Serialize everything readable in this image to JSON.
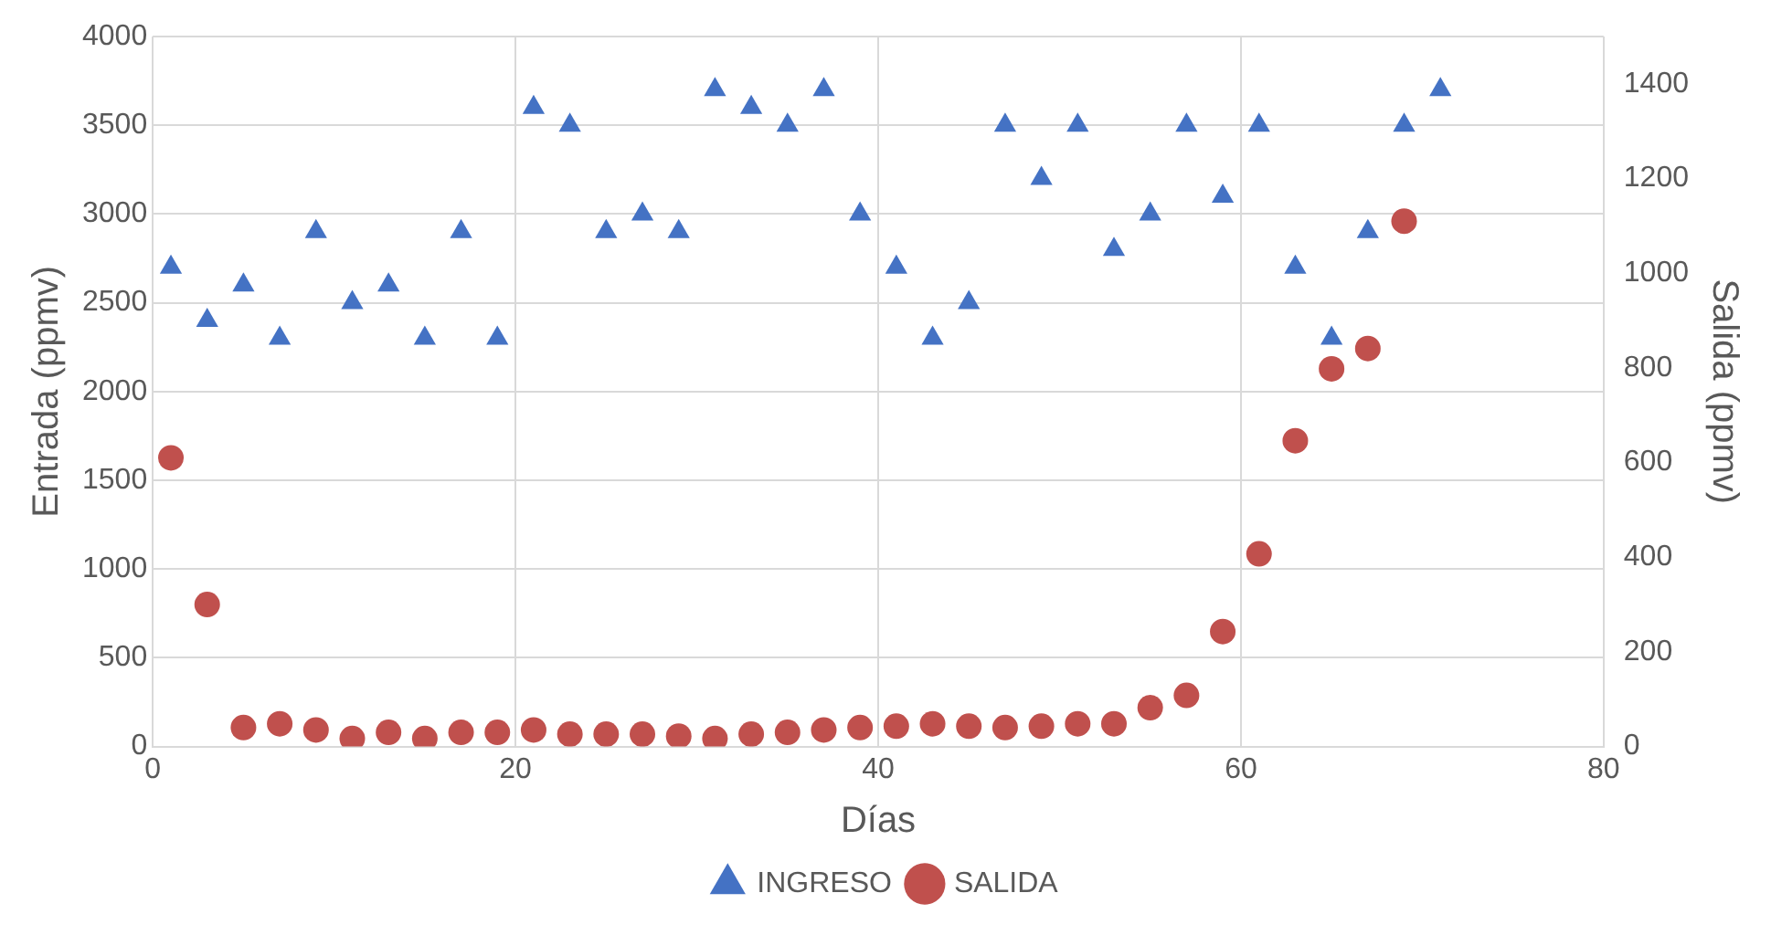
{
  "chart_data": {
    "type": "scatter",
    "xlabel": "Días",
    "ylabel": "Entrada (ppmv)",
    "y2label": "Salida (ppmv)",
    "xlim": [
      0,
      80
    ],
    "xticks": [
      0,
      20,
      40,
      60,
      80
    ],
    "ylim": [
      0,
      4000
    ],
    "yticks": [
      0,
      500,
      1000,
      1500,
      2000,
      2500,
      3000,
      3500,
      4000
    ],
    "y2lim": [
      0,
      1500
    ],
    "y2ticks": [
      0,
      200,
      400,
      600,
      800,
      1000,
      1200,
      1400
    ],
    "grid": true,
    "legend": "bottom",
    "series": [
      {
        "name": "INGRESO",
        "color": "#4472c4",
        "marker": "triangle",
        "x": [
          1,
          3,
          5,
          7,
          9,
          11,
          13,
          15,
          17,
          19,
          21,
          23,
          25,
          27,
          29,
          31,
          33,
          35,
          37,
          39,
          41,
          43,
          45,
          47,
          49,
          51,
          53,
          55,
          57,
          59,
          61,
          63,
          65,
          67,
          69,
          71
        ],
        "values": [
          2700,
          2400,
          2600,
          2300,
          2900,
          2500,
          2600,
          2300,
          2900,
          2300,
          3600,
          3500,
          2900,
          3000,
          2900,
          3700,
          3600,
          3500,
          3700,
          3000,
          2700,
          2300,
          2500,
          3500,
          3200,
          3500,
          2800,
          3000,
          3500,
          3100,
          3500,
          2700,
          2300,
          2900,
          3500,
          3700
        ]
      },
      {
        "name": "SALIDA",
        "color": "#c0504d",
        "marker": "circle",
        "axis": "y2",
        "x": [
          1,
          3,
          5,
          7,
          9,
          11,
          13,
          15,
          17,
          19,
          21,
          23,
          25,
          27,
          29,
          31,
          33,
          35,
          37,
          39,
          41,
          43,
          45,
          47,
          49,
          51,
          53,
          55,
          57,
          59,
          61,
          63,
          65,
          67,
          69
        ],
        "values": [
          610,
          300,
          40,
          48,
          35,
          17,
          30,
          17,
          30,
          30,
          35,
          26,
          26,
          26,
          22,
          17,
          26,
          30,
          35,
          40,
          43,
          48,
          43,
          40,
          43,
          48,
          48,
          82,
          108,
          243,
          407,
          646,
          798,
          841,
          1110
        ]
      }
    ]
  }
}
